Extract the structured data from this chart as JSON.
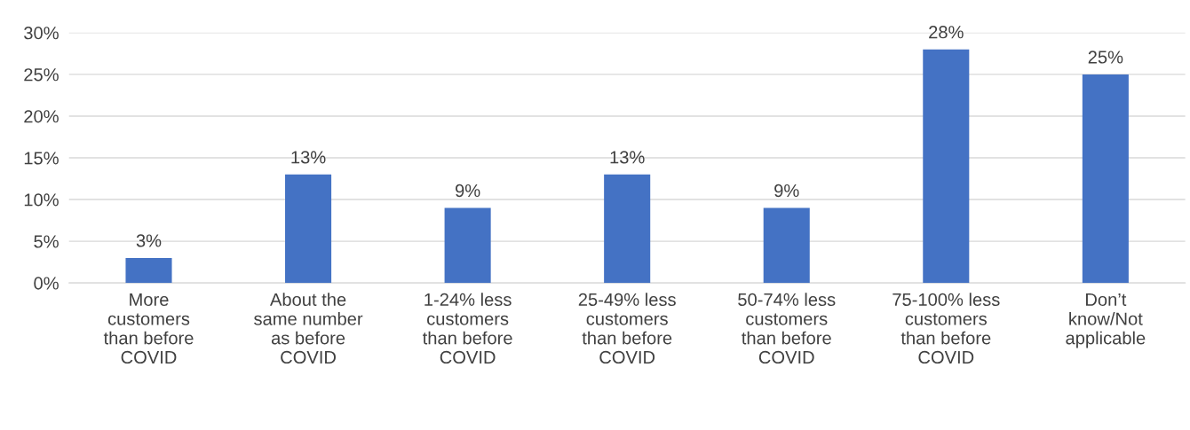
{
  "chart_data": {
    "type": "bar",
    "categories": [
      "More\ncustomers\nthan before\nCOVID",
      "About the\nsame number\nas before\nCOVID",
      "1-24% less\ncustomers\nthan before\nCOVID",
      "25-49% less\ncustomers\nthan before\nCOVID",
      "50-74% less\ncustomers\nthan before\nCOVID",
      "75-100% less\ncustomers\nthan before\nCOVID",
      "Don’t\nknow/Not\napplicable"
    ],
    "values": [
      3,
      13,
      9,
      13,
      9,
      28,
      25
    ],
    "value_labels": [
      "3%",
      "13%",
      "9%",
      "13%",
      "9%",
      "28%",
      "25%"
    ],
    "color": "#4472c4",
    "ylim": [
      0,
      30
    ],
    "yticks": [
      {
        "value": 0,
        "label": "0%"
      },
      {
        "value": 5,
        "label": "5%"
      },
      {
        "value": 10,
        "label": "10%"
      },
      {
        "value": 15,
        "label": "15%"
      },
      {
        "value": 20,
        "label": "20%"
      },
      {
        "value": 25,
        "label": "25%"
      },
      {
        "value": 30,
        "label": "30%"
      }
    ],
    "grid": "y",
    "legend": false
  }
}
